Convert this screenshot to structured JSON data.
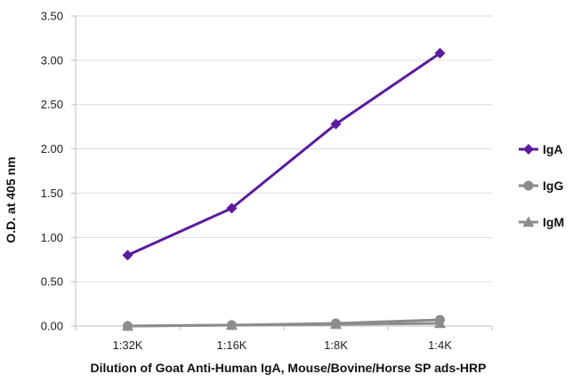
{
  "chart_data": {
    "type": "line",
    "title": "",
    "xlabel": "Dilution of Goat Anti-Human IgA, Mouse/Bovine/Horse SP ads-HRP",
    "ylabel": "O.D. at 405 nm",
    "categories": [
      "1:32K",
      "1:16K",
      "1:8K",
      "1:4K"
    ],
    "ylim": [
      0,
      3.5
    ],
    "yticks": [
      0,
      0.5,
      1.0,
      1.5,
      2.0,
      2.5,
      3.0,
      3.5
    ],
    "ytick_labels": [
      "0.00",
      "0.50",
      "1.00",
      "1.50",
      "2.00",
      "2.50",
      "3.00",
      "3.50"
    ],
    "grid": "horizontal",
    "legend_position": "right",
    "series": [
      {
        "name": "IgA",
        "values": [
          0.8,
          1.33,
          2.28,
          3.08
        ],
        "color": "#5b1aa0",
        "marker": "diamond"
      },
      {
        "name": "IgG",
        "values": [
          0.0,
          0.01,
          0.03,
          0.07
        ],
        "color": "#8c8c8c",
        "marker": "circle"
      },
      {
        "name": "IgM",
        "values": [
          0.0,
          0.01,
          0.02,
          0.03
        ],
        "color": "#8c8c8c",
        "marker": "triangle"
      }
    ]
  }
}
